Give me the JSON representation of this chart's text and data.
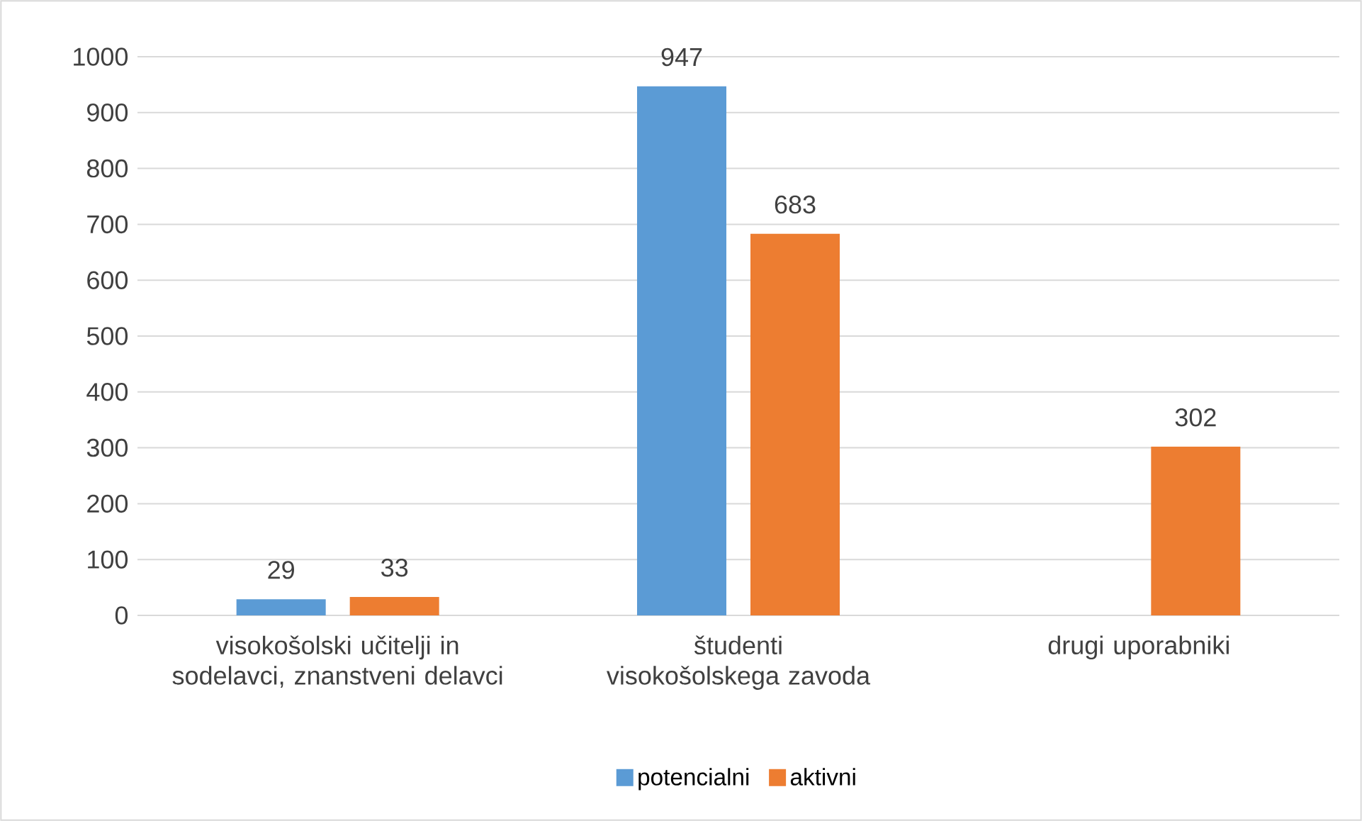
{
  "chart_data": {
    "type": "bar",
    "categories": [
      "visokošolski učitelji in sodelavci, znanstveni delavci",
      "študenti visokošolskega zavoda",
      "drugi uporabniki"
    ],
    "series": [
      {
        "name": "potencialni",
        "color": "#5b9bd5",
        "values": [
          29,
          947,
          null
        ]
      },
      {
        "name": "aktivni",
        "color": "#ed7d31",
        "values": [
          33,
          683,
          302
        ]
      }
    ],
    "ylim": [
      0,
      1000
    ],
    "yticks": [
      0,
      100,
      200,
      300,
      400,
      500,
      600,
      700,
      800,
      900,
      1000
    ],
    "grid": "y",
    "legend": "bottom",
    "data_labels": true
  }
}
